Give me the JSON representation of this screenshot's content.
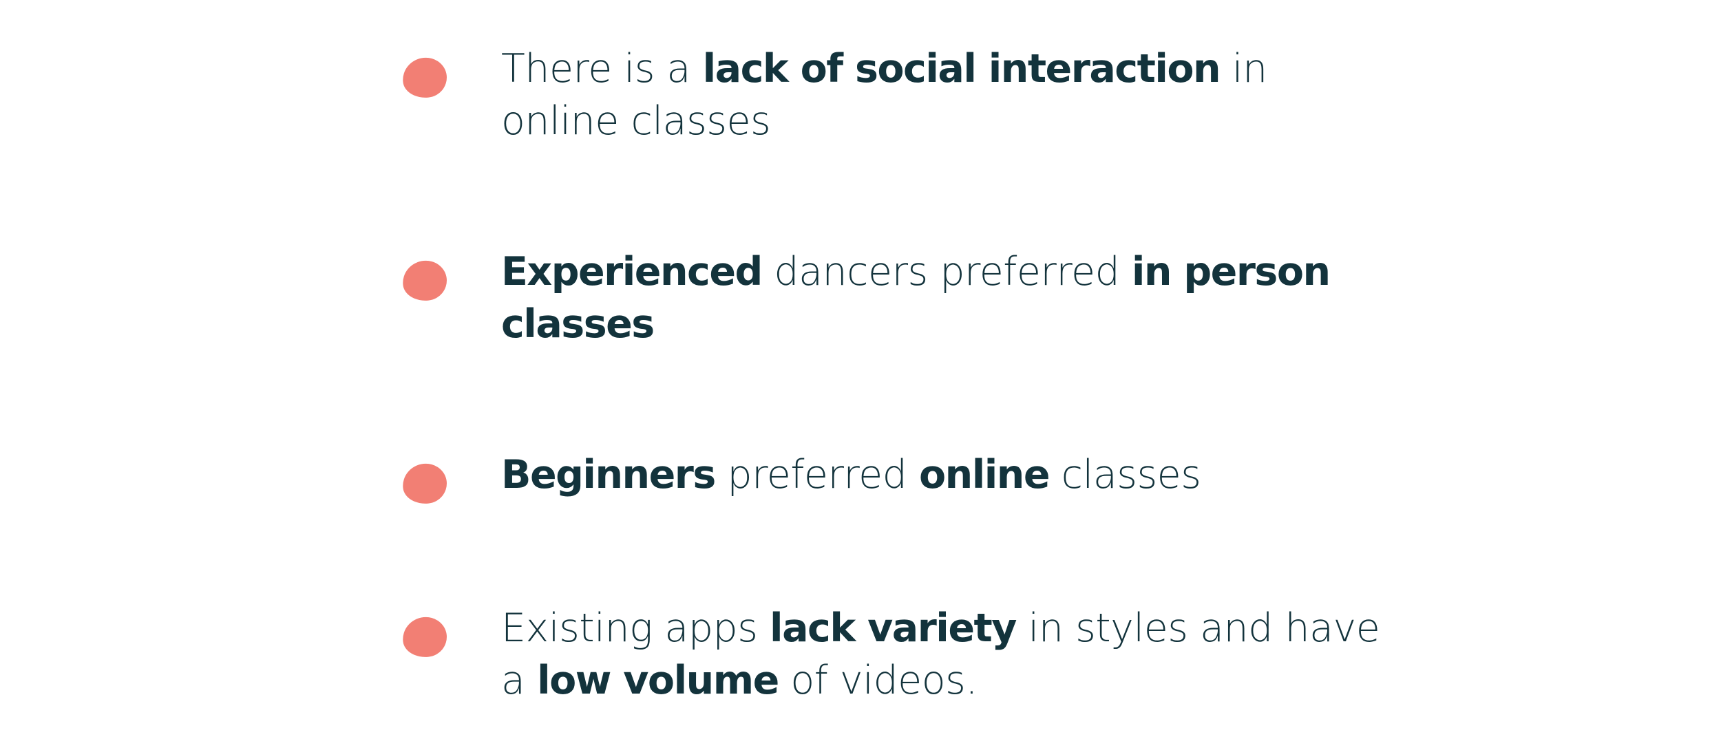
{
  "colors": {
    "bullet": "#f27f74",
    "text": "#13333c",
    "background": "#ffffff"
  },
  "items": [
    {
      "bullet_icon": "coral-blob-bullet",
      "segments": [
        {
          "text": "There is a ",
          "bold": false
        },
        {
          "text": "lack of social interaction",
          "bold": true
        },
        {
          "text": " in online classes",
          "bold": false
        }
      ]
    },
    {
      "bullet_icon": "coral-blob-bullet",
      "segments": [
        {
          "text": "Experienced",
          "bold": true
        },
        {
          "text": " dancers preferred ",
          "bold": false
        },
        {
          "text": "in person classes",
          "bold": true
        }
      ]
    },
    {
      "bullet_icon": "coral-blob-bullet",
      "segments": [
        {
          "text": "Beginners",
          "bold": true
        },
        {
          "text": " preferred ",
          "bold": false
        },
        {
          "text": "online",
          "bold": true
        },
        {
          "text": " classes",
          "bold": false
        }
      ]
    },
    {
      "bullet_icon": "coral-blob-bullet",
      "segments": [
        {
          "text": "Existing apps ",
          "bold": false
        },
        {
          "text": "lack variety",
          "bold": true
        },
        {
          "text": " in styles and have a ",
          "bold": false
        },
        {
          "text": "low volume",
          "bold": true
        },
        {
          "text": " of videos.",
          "bold": false
        }
      ]
    }
  ]
}
